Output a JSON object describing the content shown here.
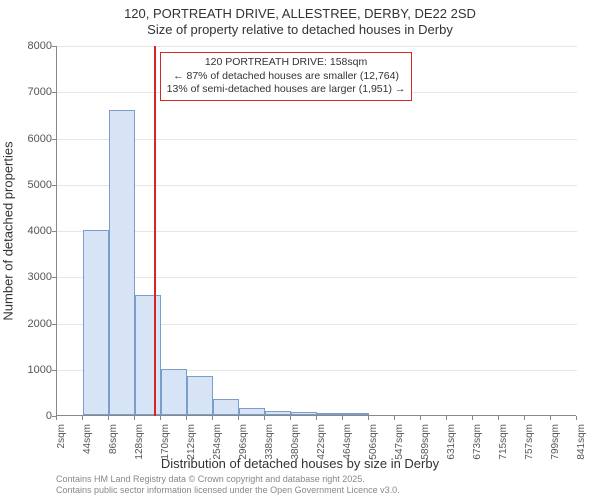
{
  "title_line1": "120, PORTREATH DRIVE, ALLESTREE, DERBY, DE22 2SD",
  "title_line2": "Size of property relative to detached houses in Derby",
  "y_axis_label": "Number of detached properties",
  "x_axis_label": "Distribution of detached houses by size in Derby",
  "footer_line1": "Contains HM Land Registry data © Crown copyright and database right 2025.",
  "footer_line2": "Contains public sector information licensed under the Open Government Licence v3.0.",
  "chart": {
    "type": "histogram",
    "ylim": [
      0,
      8000
    ],
    "ytick_step": 1000,
    "yticks": [
      0,
      1000,
      2000,
      3000,
      4000,
      5000,
      6000,
      7000,
      8000
    ],
    "x_tick_labels": [
      "2sqm",
      "44sqm",
      "86sqm",
      "128sqm",
      "170sqm",
      "212sqm",
      "254sqm",
      "296sqm",
      "338sqm",
      "380sqm",
      "422sqm",
      "464sqm",
      "506sqm",
      "547sqm",
      "589sqm",
      "631sqm",
      "673sqm",
      "715sqm",
      "757sqm",
      "799sqm",
      "841sqm"
    ],
    "bar_values": [
      0,
      4000,
      6600,
      2600,
      1000,
      850,
      350,
      150,
      80,
      60,
      40,
      30,
      20,
      15,
      10,
      8,
      5,
      3,
      2,
      1
    ],
    "bar_fill_color": "#d6e4f5",
    "bar_border_color": "#7a9ec9",
    "grid_color": "#e6e6e6",
    "background_color": "#ffffff",
    "axis_color": "#888888",
    "marker_value": 158,
    "marker_color": "#d62728",
    "annotation": {
      "line1": "120 PORTREATH DRIVE: 158sqm",
      "line2": "← 87% of detached houses are smaller (12,764)",
      "line3": "13% of semi-detached houses are larger (1,951) →",
      "border_color": "#d62728"
    },
    "x_range": [
      2,
      841
    ],
    "title_fontsize": 13,
    "label_fontsize": 13,
    "tick_fontsize": 11
  }
}
